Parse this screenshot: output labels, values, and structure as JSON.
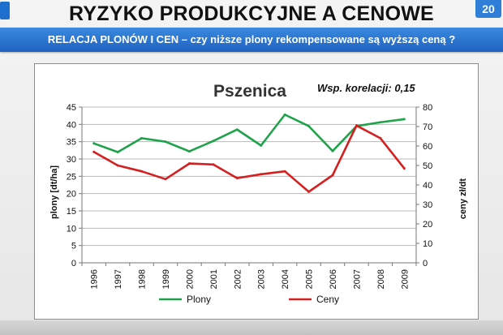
{
  "slide": {
    "title": "RYZYKO PRODUKCYJNE A CENOWE",
    "page_number": "20",
    "subtitle": "RELACJA PLONÓW I CEN – czy niższe plony rekompensowane są  wyższą ceną ?"
  },
  "colors": {
    "banner": "#2a76d2",
    "plony": "#1fa34a",
    "ceny": "#d42020"
  },
  "chart_data": {
    "type": "line",
    "title": "Pszenica",
    "annotation": "Wsp. korelacji: 0,15",
    "ylabel": "plony [dt/ha]",
    "ylabel_right": "ceny zł/dt",
    "ylim": [
      0,
      45
    ],
    "yticks": [
      0,
      5,
      10,
      15,
      20,
      25,
      30,
      35,
      40,
      45
    ],
    "ylim_right": [
      0,
      80
    ],
    "yticks_right": [
      0,
      10,
      20,
      30,
      40,
      50,
      60,
      70,
      80
    ],
    "grid": true,
    "legend_position": "bottom",
    "x": [
      "1996",
      "1997",
      "1998",
      "1999",
      "2000",
      "2001",
      "2002",
      "2003",
      "2004",
      "2005",
      "2006",
      "2007",
      "2008",
      "2009"
    ],
    "series": [
      {
        "name": "Plony",
        "axis": "left",
        "color": "#1fa34a",
        "values": [
          34.5,
          32.0,
          36.0,
          35.0,
          32.2,
          35.2,
          38.5,
          33.9,
          42.8,
          39.5,
          32.3,
          39.5,
          40.6,
          41.5
        ]
      },
      {
        "name": "Ceny",
        "axis": "right",
        "color": "#d42020",
        "values": [
          57,
          50,
          47,
          43,
          51,
          50.5,
          43.5,
          45.5,
          47,
          36.5,
          45,
          70.5,
          64,
          48.5
        ]
      }
    ]
  }
}
